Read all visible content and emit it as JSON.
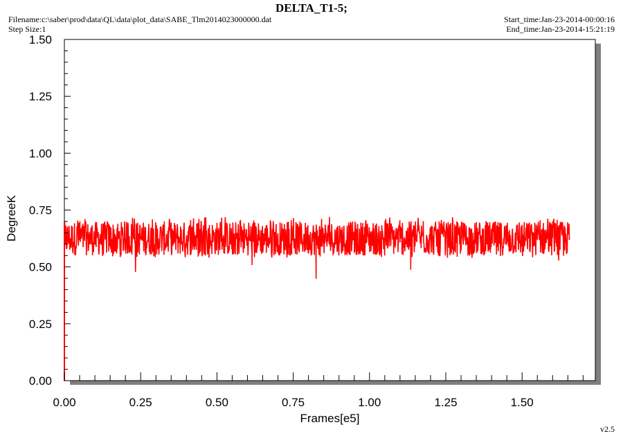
{
  "header": {
    "title": "DELTA_T1-5;",
    "filename": "Filename:c:\\saber\\prod\\data\\QL\\data\\plot_data\\SABE_Tlm2014023000000.dat",
    "step_size": "Step Size:1",
    "start_time": "Start_time:Jan-23-2014-00:00:16",
    "end_time": "End_time:Jan-23-2014-15:21:19",
    "version": "v2.5"
  },
  "colors": {
    "series": "#ff0000",
    "background": "#ffffff",
    "shadow": "#7f7f7f",
    "axis": "#000000"
  },
  "chart_data": {
    "type": "line",
    "title": "DELTA_T1-5;",
    "xlabel": "Frames[e5]",
    "ylabel": "DegreeK",
    "xlim": [
      0,
      1.74
    ],
    "ylim": [
      0,
      1.5
    ],
    "x_ticks": [
      "0.00",
      "0.25",
      "0.50",
      "0.75",
      "1.00",
      "1.25",
      "1.50"
    ],
    "y_ticks": [
      "0.00",
      "0.25",
      "0.50",
      "0.75",
      "1.00",
      "1.25",
      "1.50"
    ],
    "grid": false,
    "series": [
      {
        "band_low": 0.55,
        "band_high": 0.7,
        "x_range": [
          0.0,
          1.655
        ],
        "initial_point": [
          0.0,
          0.0
        ],
        "x": [
          0.0,
          0.002,
          0.05,
          0.1,
          0.15,
          0.2,
          0.233,
          0.25,
          0.3,
          0.35,
          0.4,
          0.45,
          0.5,
          0.55,
          0.6,
          0.615,
          0.65,
          0.7,
          0.75,
          0.8,
          0.825,
          0.85,
          0.9,
          0.95,
          1.0,
          1.05,
          1.1,
          1.135,
          1.15,
          1.2,
          1.25,
          1.3,
          1.35,
          1.4,
          1.45,
          1.5,
          1.55,
          1.6,
          1.62,
          1.655
        ],
        "y": [
          0.0,
          0.6,
          0.62,
          0.63,
          0.61,
          0.62,
          0.48,
          0.63,
          0.62,
          0.61,
          0.63,
          0.62,
          0.61,
          0.62,
          0.63,
          0.51,
          0.62,
          0.61,
          0.62,
          0.63,
          0.45,
          0.62,
          0.61,
          0.62,
          0.63,
          0.62,
          0.61,
          0.49,
          0.62,
          0.63,
          0.61,
          0.62,
          0.61,
          0.63,
          0.62,
          0.61,
          0.62,
          0.63,
          0.53,
          0.62
        ],
        "noise_min": 0.54,
        "noise_max": 0.72
      }
    ]
  }
}
